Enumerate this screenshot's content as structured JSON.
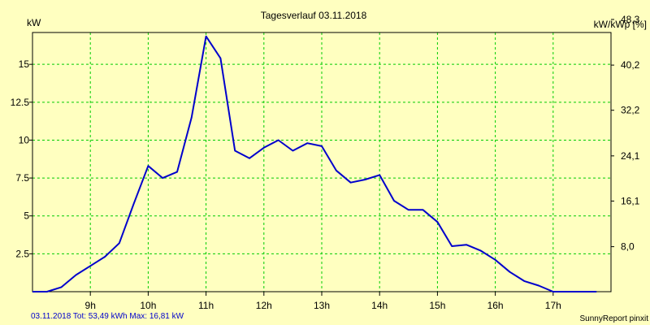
{
  "chart_data": {
    "type": "line",
    "title": "Tagesverlauf 03.11.2018",
    "ylabel_left": "kW",
    "ylabel_right": "kW/kWp [%]",
    "xlim": [
      8.0,
      18.0
    ],
    "ylim": [
      0,
      17.1
    ],
    "x_ticks": [
      {
        "value": 9,
        "label": "9h"
      },
      {
        "value": 10,
        "label": "10h"
      },
      {
        "value": 11,
        "label": "11h"
      },
      {
        "value": 12,
        "label": "12h"
      },
      {
        "value": 13,
        "label": "13h"
      },
      {
        "value": 14,
        "label": "14h"
      },
      {
        "value": 15,
        "label": "15h"
      },
      {
        "value": 16,
        "label": "16h"
      },
      {
        "value": 17,
        "label": "17h"
      }
    ],
    "y_ticks_left": [
      {
        "value": 2.5,
        "label": "2.5"
      },
      {
        "value": 5,
        "label": "5"
      },
      {
        "value": 7.5,
        "label": "7.5"
      },
      {
        "value": 10,
        "label": "10"
      },
      {
        "value": 12.5,
        "label": "12.5"
      },
      {
        "value": 15,
        "label": "15"
      }
    ],
    "y_ticks_right": [
      {
        "value": 2.97,
        "label": "8,0"
      },
      {
        "value": 5.98,
        "label": "16,1"
      },
      {
        "value": 8.96,
        "label": "24,1"
      },
      {
        "value": 11.97,
        "label": "32,2"
      },
      {
        "value": 14.95,
        "label": "40,2"
      },
      {
        "value": 17.96,
        "label": "48,3"
      }
    ],
    "grid": true,
    "colors": {
      "line": "#0000cc",
      "grid": "#00cc00",
      "background": "#ffffc0",
      "footer_text": "#0000cc"
    },
    "series": [
      {
        "x": [
          8.0,
          8.25,
          8.5,
          8.75,
          9.0,
          9.25,
          9.5,
          9.75,
          10.0,
          10.25,
          10.5,
          10.75,
          11.0,
          11.25,
          11.5,
          11.75,
          12.0,
          12.25,
          12.5,
          12.75,
          13.0,
          13.25,
          13.5,
          13.75,
          14.0,
          14.25,
          14.5,
          14.75,
          15.0,
          15.25,
          15.5,
          15.75,
          16.0,
          16.25,
          16.5,
          16.75,
          17.0,
          17.25,
          17.5,
          17.75
        ],
        "y": [
          0.0,
          0.0,
          0.3,
          1.1,
          1.7,
          2.3,
          3.2,
          5.8,
          8.3,
          7.5,
          7.9,
          11.5,
          16.85,
          15.4,
          9.3,
          8.8,
          9.5,
          10.0,
          9.3,
          9.8,
          9.6,
          8.0,
          7.2,
          7.4,
          7.7,
          6.0,
          5.4,
          5.4,
          4.6,
          3.0,
          3.1,
          2.7,
          2.1,
          1.3,
          0.7,
          0.4,
          0.0,
          0.0,
          0.0,
          0.0
        ]
      }
    ]
  },
  "footer": {
    "left": "03.11.2018 Tot: 53,49 kWh Max: 16,81 kW",
    "right": "SunnyReport pinxit"
  }
}
